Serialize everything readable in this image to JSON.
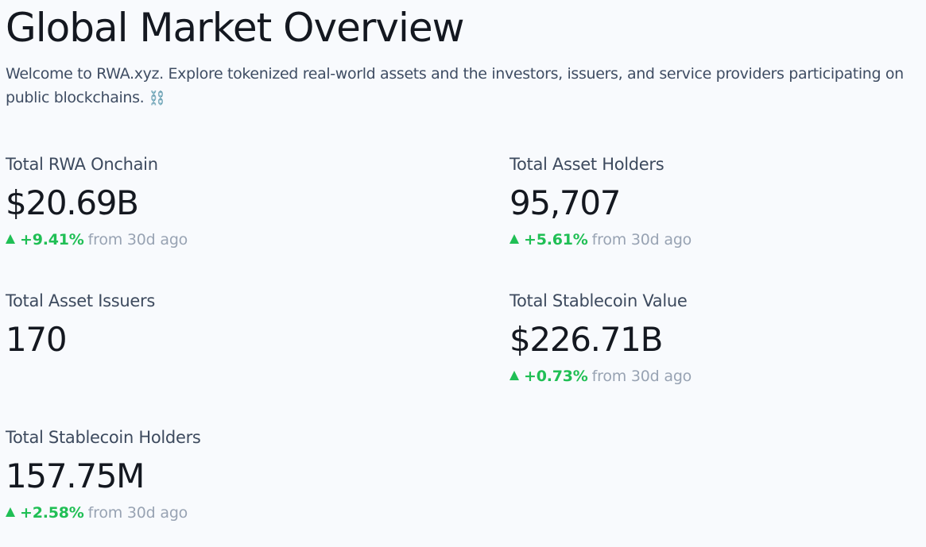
{
  "header": {
    "title": "Global Market Overview",
    "intro": "Welcome to RWA.xyz. Explore tokenized real-world assets and the investors, issuers, and service providers participating on public blockchains.",
    "intro_emoji": "⛓️"
  },
  "stats": [
    {
      "label": "Total RWA Onchain",
      "value": "$20.69B",
      "change": "+9.41%",
      "change_suffix": "from 30d ago"
    },
    {
      "label": "Total Asset Holders",
      "value": "95,707",
      "change": "+5.61%",
      "change_suffix": "from 30d ago"
    },
    {
      "label": "Total Asset Issuers",
      "value": "170"
    },
    {
      "label": "Total Stablecoin Value",
      "value": "$226.71B",
      "change": "+0.73%",
      "change_suffix": "from 30d ago"
    },
    {
      "label": "Total Stablecoin Holders",
      "value": "157.75M",
      "change": "+2.58%",
      "change_suffix": "from 30d ago"
    }
  ],
  "colors": {
    "positive": "#20bf55",
    "muted": "#98a3b3",
    "text": "#141820",
    "label": "#3d4a5e",
    "background": "#f8fafd"
  },
  "icons": {
    "change_up": "triangle-up-icon",
    "chain": "chain-emoji-icon"
  }
}
